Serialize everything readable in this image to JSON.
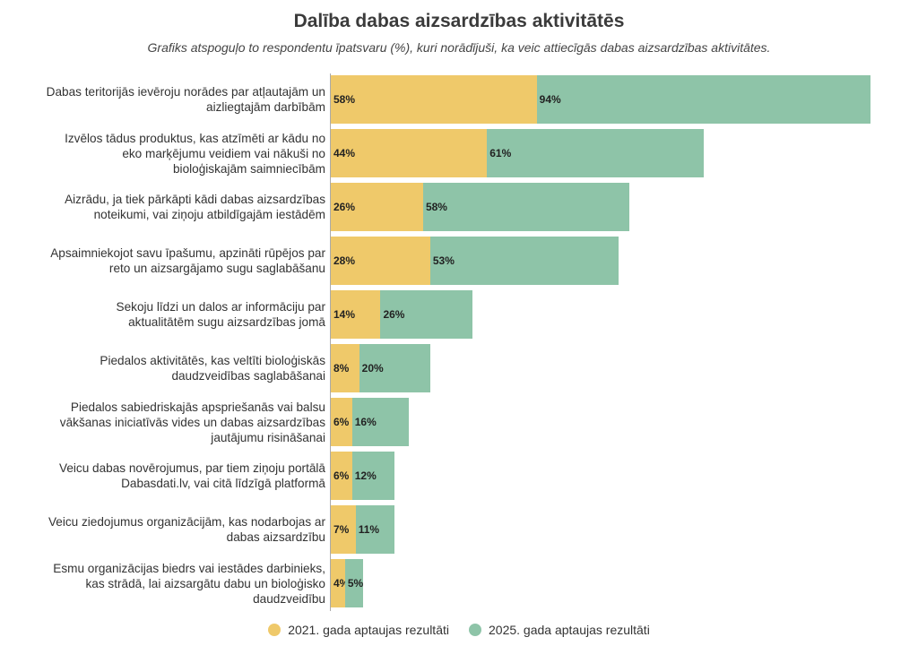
{
  "chart_data": {
    "type": "bar",
    "orientation": "horizontal",
    "stacked": true,
    "title": "Dalība dabas aizsardzības aktivitātēs",
    "subtitle": "Grafiks atspoguļo to respondentu īpatsvaru (%), kuri norādījuši, ka veic attiecīgās dabas aizsardzības aktivitātes.",
    "xlabel": "",
    "ylabel": "",
    "grid": false,
    "legend_position": "bottom",
    "categories": [
      "Dabas teritorijās ievēroju norādes par atļautajām un aizliegtajām darbībām",
      "Izvēlos tādus produktus, kas atzīmēti ar kādu no eko marķējumu veidiem vai nākuši no bioloģiskajām saimniecībām",
      "Aizrādu, ja tiek pārkāpti kādi dabas aizsardzības noteikumi, vai ziņoju atbildīgajām iestādēm",
      "Apsaimniekojot savu īpašumu, apzināti rūpējos par reto un aizsargājamo sugu saglabāšanu",
      "Sekoju līdzi un dalos ar informāciju par aktualitātēm sugu aizsardzības jomā",
      "Piedalos aktivitātēs, kas veltīti bioloģiskās daudzveidības saglabāšanai",
      "Piedalos sabiedriskajās apspriešanās vai balsu vākšanas iniciatīvās vides un dabas aizsardzības jautājumu risināšanai",
      "Veicu dabas novērojumus, par tiem ziņoju portālā Dabasdati.lv, vai citā līdzīgā platformā",
      "Veicu ziedojumus organizācijām, kas nodarbojas ar dabas aizsardzību",
      "Esmu organizācijas biedrs vai iestādes darbinieks, kas strādā, lai aizsargātu dabu un bioloģisko daudzveidību"
    ],
    "series": [
      {
        "name": "2021. gada aptaujas rezultāti",
        "color": "#efc96a",
        "values": [
          58,
          44,
          26,
          28,
          14,
          8,
          6,
          6,
          7,
          4
        ]
      },
      {
        "name": "2025. gada aptaujas rezultāti",
        "color": "#8ec4a8",
        "values": [
          94,
          61,
          58,
          53,
          26,
          20,
          16,
          12,
          11,
          5
        ]
      }
    ],
    "value_suffix": "%"
  }
}
